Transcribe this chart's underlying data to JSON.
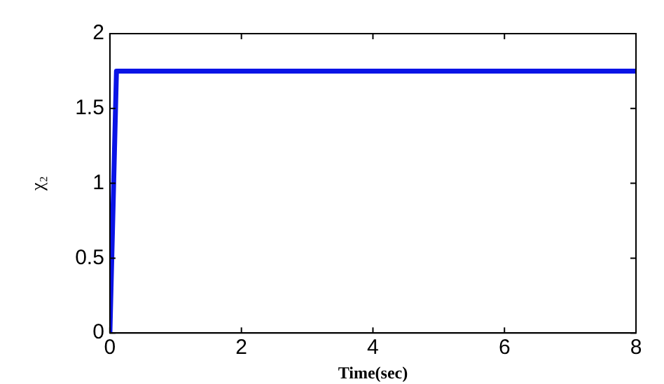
{
  "chart_data": {
    "type": "line",
    "xlabel": "Time(sec)",
    "ylabel": "χ₂",
    "xlim": [
      0,
      8
    ],
    "xticks": [
      0,
      2,
      4,
      6,
      8
    ],
    "ylim": [
      0,
      2
    ],
    "yticks": [
      0,
      0.5,
      1,
      1.5,
      2
    ],
    "grid": false,
    "legend": false,
    "marker": "none",
    "line_style": "solid",
    "series": [
      {
        "color": "#0a14e6",
        "x": [
          0,
          0.1,
          8
        ],
        "values": [
          0,
          1.75,
          1.75
        ]
      }
    ]
  }
}
